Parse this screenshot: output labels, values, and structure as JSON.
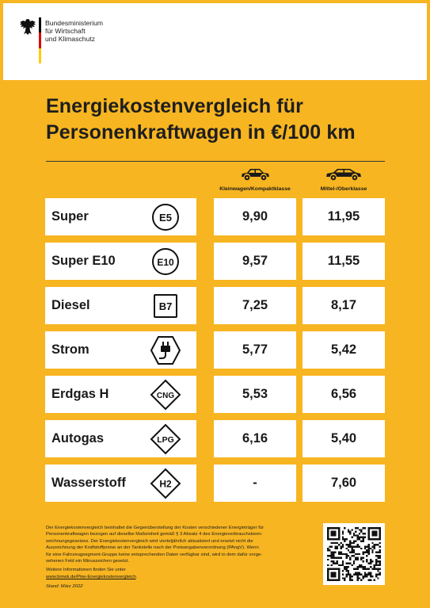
{
  "header": {
    "ministry_lines": [
      "Bundesministerium",
      "für Wirtschaft",
      "und Klimaschutz"
    ]
  },
  "title_lines": [
    "Energiekostenvergleich für",
    "Personenkraftwagen in €/100 km"
  ],
  "columns": [
    {
      "label": "Kleinwagen/Kompaktklasse",
      "icon": "small-car-icon"
    },
    {
      "label": "Mittel-/Oberklasse",
      "icon": "large-car-icon"
    }
  ],
  "fuels": [
    {
      "name": "Super",
      "badge": "E5",
      "badge_shape": "circle",
      "small": "9,90",
      "large": "11,95"
    },
    {
      "name": "Super E10",
      "badge": "E10",
      "badge_shape": "circle",
      "small": "9,57",
      "large": "11,55"
    },
    {
      "name": "Diesel",
      "badge": "B7",
      "badge_shape": "square",
      "small": "7,25",
      "large": "8,17"
    },
    {
      "name": "Strom",
      "badge": "",
      "badge_shape": "hexagon-plug",
      "small": "5,77",
      "large": "5,42"
    },
    {
      "name": "Erdgas H",
      "badge": "CNG",
      "badge_shape": "diamond",
      "small": "5,53",
      "large": "6,56"
    },
    {
      "name": "Autogas",
      "badge": "LPG",
      "badge_shape": "diamond",
      "small": "6,16",
      "large": "5,40"
    },
    {
      "name": "Wasserstoff",
      "badge": "H2",
      "badge_shape": "diamond",
      "small": "-",
      "large": "7,60"
    }
  ],
  "footnote": {
    "lines": [
      "Der Energiekostenvergleich beinhaltet die Gegenüberstellung der Kosten verschiedener Energieträger für",
      "Personenkraftwagen bezogen auf dieselbe Maßeinheit gemäß § 3 Absatz 4 des Energieverbrauchskenn-",
      "zeichnungsgesetzes. Der Energiekostenvergleich wird vierteljährlich aktualisiert und ersetzt nicht die",
      "Auszeichnung der Kraftstoffpreise an der Tankstelle nach der Preisangabenverordnung (PAngV). Wenn",
      "für eine Fahrzeugsegment-Gruppe keine entsprechenden Daten verfügbar sind, wird in dem dafür vorge-",
      "sehenen Feld ein Minuszeichen gesetzt."
    ],
    "more_info": "Weitere Informationen finden Sie unter",
    "link": "www.bmwk.de/Pkw-Energiekostenvergleich",
    "link_suffix": ".",
    "stand": "Stand: März 2022"
  },
  "colors": {
    "background": "#f7b521",
    "card": "#ffffff",
    "text": "#1a1a1a"
  }
}
